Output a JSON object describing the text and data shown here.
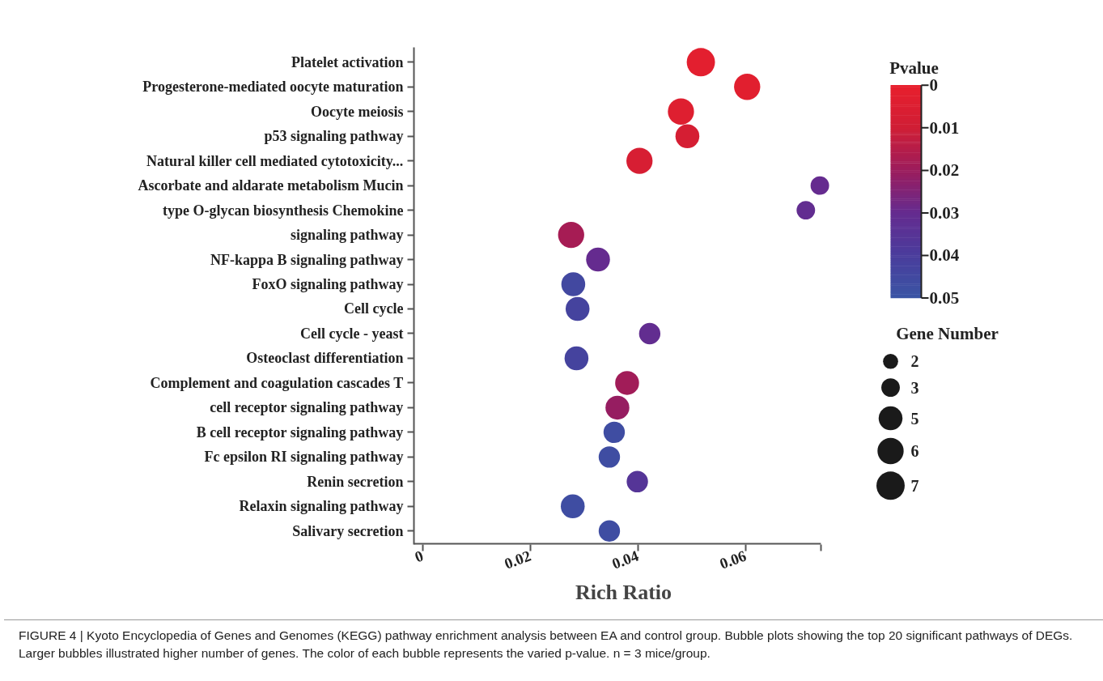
{
  "chart_data": {
    "type": "bubble",
    "orientation": "horizontal",
    "xlabel": "Rich Ratio",
    "clabel": "Pvalue",
    "legend_title": "Gene Number",
    "grid": false,
    "categories": [
      "Platelet activation",
      "Progesterone-mediated oocyte maturation",
      "Oocyte meiosis",
      "p53 signaling pathway",
      "Natural killer cell mediated cytotoxicity...",
      "Ascorbate and aldarate metabolism Mucin",
      "type O-glycan biosynthesis Chemokine",
      "signaling pathway",
      "NF-kappa B signaling pathway",
      "FoxO signaling pathway",
      "Cell cycle",
      "Cell cycle - yeast",
      "Osteoclast differentiation",
      "Complement and coagulation cascades T",
      "cell receptor signaling pathway",
      "B cell receptor signaling pathway",
      "Fc epsilon RI signaling pathway",
      "Renin secretion",
      "Relaxin signaling pathway",
      "Salivary secretion"
    ],
    "values": [
      0.0517,
      0.0603,
      0.048,
      0.0492,
      0.0403,
      0.0738,
      0.0712,
      0.0276,
      0.0326,
      0.028,
      0.0288,
      0.0422,
      0.0286,
      0.038,
      0.0362,
      0.0356,
      0.0347,
      0.0399,
      0.0279,
      0.0347
    ],
    "sizes": [
      7,
      6,
      6,
      5,
      6,
      3,
      3,
      6,
      5,
      5,
      5,
      4,
      5,
      5,
      5,
      4,
      4,
      4,
      5,
      4
    ],
    "cvalues": [
      0.002,
      0.003,
      0.004,
      0.008,
      0.007,
      0.03,
      0.031,
      0.018,
      0.03,
      0.045,
      0.043,
      0.031,
      0.043,
      0.019,
      0.021,
      0.047,
      0.047,
      0.036,
      0.047,
      0.047
    ],
    "size_legend": [
      2,
      3,
      5,
      6,
      7
    ],
    "clim": [
      0,
      0.05
    ],
    "cticks": [
      0,
      0.01,
      0.02,
      0.03,
      0.04,
      0.05
    ],
    "xlim": [
      -0.0016,
      0.074
    ],
    "xticks": [
      0,
      0.02,
      0.04,
      0.06,
      {
        "value": 0.074,
        "label": null
      }
    ],
    "annotations": [
      "FIGURE 4 | Kyoto Encyclopedia of Genes and Genomes (KEGG) pathway enrichment analysis between EA and control group. Bubble plots showing the top 20 significant pathways of DEGs. Larger bubbles illustrated higher number of genes. The color of each bubble represents the varied p-value. n = 3 mice/group."
    ]
  }
}
